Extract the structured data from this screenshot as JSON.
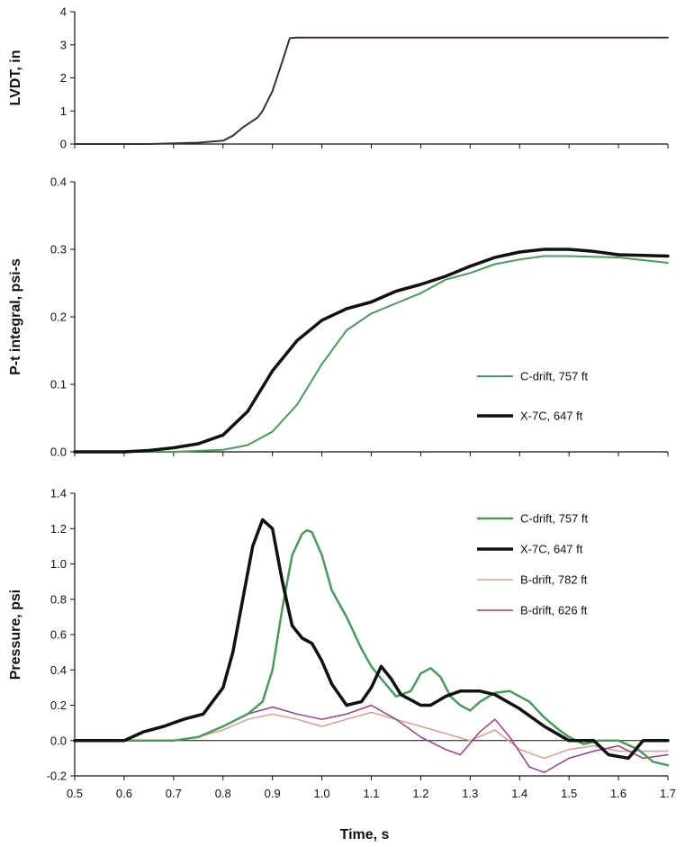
{
  "chart_data": [
    {
      "type": "line",
      "ylabel": "LVDT,  in",
      "xlabel": "",
      "xlim": [
        0.5,
        1.7
      ],
      "ylim": [
        0,
        4
      ],
      "x_ticks": [
        0.5,
        0.6,
        0.7,
        0.8,
        0.9,
        1.0,
        1.1,
        1.2,
        1.3,
        1.4,
        1.5,
        1.6,
        1.7
      ],
      "y_ticks": [
        "0",
        "1",
        "2",
        "3",
        "4"
      ],
      "y_tick_values": [
        0,
        1,
        2,
        3,
        4
      ],
      "grid": false,
      "legend": "none",
      "series": [
        {
          "color": "#3a3030",
          "width": 2,
          "points": [
            [
              0.5,
              0
            ],
            [
              0.65,
              0
            ],
            [
              0.7,
              0.02
            ],
            [
              0.75,
              0.04
            ],
            [
              0.8,
              0.1
            ],
            [
              0.82,
              0.25
            ],
            [
              0.84,
              0.5
            ],
            [
              0.86,
              0.7
            ],
            [
              0.87,
              0.8
            ],
            [
              0.88,
              1.0
            ],
            [
              0.9,
              1.6
            ],
            [
              0.92,
              2.5
            ],
            [
              0.935,
              3.2
            ],
            [
              0.95,
              3.22
            ],
            [
              1.0,
              3.22
            ],
            [
              1.7,
              3.22
            ]
          ]
        }
      ]
    },
    {
      "type": "line",
      "ylabel": "P-t integral,  psi-s",
      "xlabel": "",
      "xlim": [
        0.5,
        1.7
      ],
      "ylim": [
        0,
        0.4
      ],
      "x_ticks": [
        0.5,
        0.6,
        0.7,
        0.8,
        0.9,
        1.0,
        1.1,
        1.2,
        1.3,
        1.4,
        1.5,
        1.6,
        1.7
      ],
      "y_ticks": [
        "0.0",
        "0.1",
        "0.2",
        "0.3",
        "0.4"
      ],
      "y_tick_values": [
        0,
        0.1,
        0.2,
        0.3,
        0.4
      ],
      "grid": false,
      "legend": "right",
      "series": [
        {
          "name": "C-drift, 757 ft",
          "color": "#4a9a5a",
          "width": 2,
          "points": [
            [
              0.5,
              0
            ],
            [
              0.7,
              0
            ],
            [
              0.8,
              0.003
            ],
            [
              0.85,
              0.01
            ],
            [
              0.9,
              0.03
            ],
            [
              0.95,
              0.07
            ],
            [
              1.0,
              0.13
            ],
            [
              1.05,
              0.18
            ],
            [
              1.1,
              0.205
            ],
            [
              1.15,
              0.22
            ],
            [
              1.2,
              0.235
            ],
            [
              1.25,
              0.255
            ],
            [
              1.3,
              0.265
            ],
            [
              1.35,
              0.278
            ],
            [
              1.4,
              0.285
            ],
            [
              1.45,
              0.29
            ],
            [
              1.5,
              0.29
            ],
            [
              1.6,
              0.288
            ],
            [
              1.7,
              0.28
            ]
          ]
        },
        {
          "name": "X-7C, 647 ft",
          "color": "#111111",
          "width": 3.5,
          "points": [
            [
              0.5,
              0
            ],
            [
              0.6,
              0
            ],
            [
              0.65,
              0.002
            ],
            [
              0.7,
              0.006
            ],
            [
              0.75,
              0.012
            ],
            [
              0.8,
              0.025
            ],
            [
              0.85,
              0.06
            ],
            [
              0.9,
              0.12
            ],
            [
              0.95,
              0.165
            ],
            [
              1.0,
              0.195
            ],
            [
              1.05,
              0.212
            ],
            [
              1.1,
              0.222
            ],
            [
              1.15,
              0.238
            ],
            [
              1.2,
              0.248
            ],
            [
              1.25,
              0.26
            ],
            [
              1.3,
              0.275
            ],
            [
              1.35,
              0.288
            ],
            [
              1.4,
              0.296
            ],
            [
              1.45,
              0.3
            ],
            [
              1.5,
              0.3
            ],
            [
              1.55,
              0.297
            ],
            [
              1.6,
              0.292
            ],
            [
              1.7,
              0.29
            ]
          ]
        }
      ]
    },
    {
      "type": "line",
      "ylabel": "Pressure, psi",
      "xlabel": "Time, s",
      "xlim": [
        0.5,
        1.7
      ],
      "ylim": [
        -0.2,
        1.4
      ],
      "x_ticks": [
        0.5,
        0.6,
        0.7,
        0.8,
        0.9,
        1.0,
        1.1,
        1.2,
        1.3,
        1.4,
        1.5,
        1.6,
        1.7
      ],
      "y_ticks": [
        "-0.2",
        "0.0",
        "0.2",
        "0.4",
        "0.6",
        "0.8",
        "1.0",
        "1.2",
        "1.4"
      ],
      "y_tick_values": [
        -0.2,
        0,
        0.2,
        0.4,
        0.6,
        0.8,
        1.0,
        1.2,
        1.4
      ],
      "grid": false,
      "zero_line": true,
      "legend": "top-right",
      "series": [
        {
          "name": "C-drift, 757 ft",
          "color": "#4a9a5a",
          "width": 2.5,
          "points": [
            [
              0.5,
              0
            ],
            [
              0.7,
              0
            ],
            [
              0.75,
              0.02
            ],
            [
              0.8,
              0.08
            ],
            [
              0.85,
              0.15
            ],
            [
              0.88,
              0.22
            ],
            [
              0.9,
              0.4
            ],
            [
              0.92,
              0.75
            ],
            [
              0.94,
              1.05
            ],
            [
              0.96,
              1.17
            ],
            [
              0.97,
              1.19
            ],
            [
              0.98,
              1.18
            ],
            [
              1.0,
              1.05
            ],
            [
              1.02,
              0.85
            ],
            [
              1.05,
              0.7
            ],
            [
              1.08,
              0.52
            ],
            [
              1.1,
              0.42
            ],
            [
              1.12,
              0.35
            ],
            [
              1.15,
              0.25
            ],
            [
              1.18,
              0.28
            ],
            [
              1.2,
              0.38
            ],
            [
              1.22,
              0.41
            ],
            [
              1.24,
              0.36
            ],
            [
              1.26,
              0.25
            ],
            [
              1.28,
              0.2
            ],
            [
              1.3,
              0.17
            ],
            [
              1.32,
              0.22
            ],
            [
              1.35,
              0.27
            ],
            [
              1.38,
              0.28
            ],
            [
              1.42,
              0.22
            ],
            [
              1.45,
              0.13
            ],
            [
              1.48,
              0.06
            ],
            [
              1.5,
              0.02
            ],
            [
              1.53,
              -0.02
            ],
            [
              1.56,
              0.0
            ],
            [
              1.6,
              0.0
            ],
            [
              1.64,
              -0.05
            ],
            [
              1.67,
              -0.12
            ],
            [
              1.7,
              -0.14
            ]
          ]
        },
        {
          "name": "X-7C, 647 ft",
          "color": "#111111",
          "width": 3.5,
          "points": [
            [
              0.5,
              0
            ],
            [
              0.6,
              0
            ],
            [
              0.64,
              0.05
            ],
            [
              0.68,
              0.08
            ],
            [
              0.72,
              0.12
            ],
            [
              0.76,
              0.15
            ],
            [
              0.8,
              0.3
            ],
            [
              0.82,
              0.5
            ],
            [
              0.84,
              0.8
            ],
            [
              0.86,
              1.1
            ],
            [
              0.88,
              1.25
            ],
            [
              0.9,
              1.2
            ],
            [
              0.92,
              0.9
            ],
            [
              0.94,
              0.65
            ],
            [
              0.96,
              0.58
            ],
            [
              0.98,
              0.55
            ],
            [
              1.0,
              0.45
            ],
            [
              1.02,
              0.32
            ],
            [
              1.05,
              0.2
            ],
            [
              1.08,
              0.22
            ],
            [
              1.1,
              0.3
            ],
            [
              1.12,
              0.42
            ],
            [
              1.14,
              0.35
            ],
            [
              1.16,
              0.26
            ],
            [
              1.2,
              0.2
            ],
            [
              1.22,
              0.2
            ],
            [
              1.25,
              0.25
            ],
            [
              1.28,
              0.28
            ],
            [
              1.32,
              0.28
            ],
            [
              1.35,
              0.26
            ],
            [
              1.4,
              0.18
            ],
            [
              1.45,
              0.08
            ],
            [
              1.5,
              0.0
            ],
            [
              1.55,
              0.0
            ],
            [
              1.58,
              -0.08
            ],
            [
              1.62,
              -0.1
            ],
            [
              1.65,
              0.0
            ],
            [
              1.7,
              0.0
            ]
          ]
        },
        {
          "name": "B-drift, 782 ft",
          "color": "#d6a090",
          "width": 1.5,
          "points": [
            [
              0.5,
              0
            ],
            [
              0.7,
              0
            ],
            [
              0.75,
              0.02
            ],
            [
              0.8,
              0.06
            ],
            [
              0.85,
              0.12
            ],
            [
              0.9,
              0.15
            ],
            [
              0.95,
              0.12
            ],
            [
              1.0,
              0.08
            ],
            [
              1.05,
              0.12
            ],
            [
              1.1,
              0.16
            ],
            [
              1.15,
              0.12
            ],
            [
              1.2,
              0.08
            ],
            [
              1.25,
              0.04
            ],
            [
              1.3,
              0.0
            ],
            [
              1.35,
              0.06
            ],
            [
              1.4,
              -0.05
            ],
            [
              1.45,
              -0.1
            ],
            [
              1.5,
              -0.05
            ],
            [
              1.55,
              -0.03
            ],
            [
              1.6,
              -0.06
            ],
            [
              1.7,
              -0.06
            ]
          ]
        },
        {
          "name": "B-drift, 626 ft",
          "color": "#9a3c8c",
          "width": 1.5,
          "points": [
            [
              0.5,
              0
            ],
            [
              0.7,
              0
            ],
            [
              0.75,
              0.02
            ],
            [
              0.8,
              0.08
            ],
            [
              0.85,
              0.15
            ],
            [
              0.9,
              0.19
            ],
            [
              0.95,
              0.15
            ],
            [
              1.0,
              0.12
            ],
            [
              1.05,
              0.15
            ],
            [
              1.1,
              0.2
            ],
            [
              1.15,
              0.12
            ],
            [
              1.2,
              0.02
            ],
            [
              1.25,
              -0.05
            ],
            [
              1.28,
              -0.08
            ],
            [
              1.32,
              0.05
            ],
            [
              1.35,
              0.12
            ],
            [
              1.38,
              0.02
            ],
            [
              1.42,
              -0.15
            ],
            [
              1.45,
              -0.18
            ],
            [
              1.5,
              -0.1
            ],
            [
              1.55,
              -0.06
            ],
            [
              1.6,
              -0.03
            ],
            [
              1.65,
              -0.1
            ],
            [
              1.7,
              -0.08
            ]
          ]
        }
      ]
    }
  ]
}
